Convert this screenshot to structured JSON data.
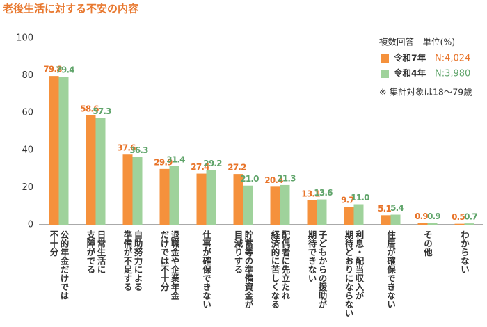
{
  "chart_data": {
    "type": "bar",
    "title": "老後生活に対する不安の内容",
    "legend_header": "複数回答　単位(%)",
    "note": "※ 集計対象は18〜79歳",
    "categories": [
      "公的年金だけでは\n不十分",
      "日常生活に\n支障がでる",
      "自助努力による\n準備が不足する",
      "退職金や企業年金\nだけでは不十分",
      "仕事が確保できない",
      "貯蓄等の準備資金が\n目減りする",
      "配偶者に先立たれ\n経済的に苦しくなる",
      "子どもからの援助が\n期待できない",
      "利息・配当収入が\n期待どおりにならない",
      "住居が確保できない",
      "その他",
      "わからない"
    ],
    "series": [
      {
        "name": "令和7年",
        "n": "N:4,024",
        "color": "#f5913c",
        "values": [
          79.8,
          58.6,
          37.6,
          29.9,
          27.4,
          27.2,
          20.4,
          13.1,
          9.7,
          5.1,
          0.9,
          0.5
        ],
        "value_labels": [
          "79.8",
          "58.6",
          "37.6",
          "29.9",
          "27.4",
          "27.2",
          "20.4",
          "13.1",
          "9.7",
          "5.1",
          "0.9",
          "0.5"
        ]
      },
      {
        "name": "令和4年",
        "n": "N:3,980",
        "color": "#9fd29b",
        "values": [
          79.4,
          57.3,
          36.3,
          31.4,
          29.2,
          21.0,
          21.3,
          13.6,
          11.0,
          5.4,
          0.9,
          0.7
        ],
        "value_labels": [
          "79.4",
          "57.3",
          "36.3",
          "31.4",
          "29.2",
          "21.0",
          "21.3",
          "13.6",
          "11.0",
          "5.4",
          "0.9",
          "0.7"
        ]
      }
    ],
    "ylim": [
      0,
      100
    ],
    "yticks": [
      0,
      20,
      40,
      60,
      80,
      100
    ],
    "grid": false
  }
}
